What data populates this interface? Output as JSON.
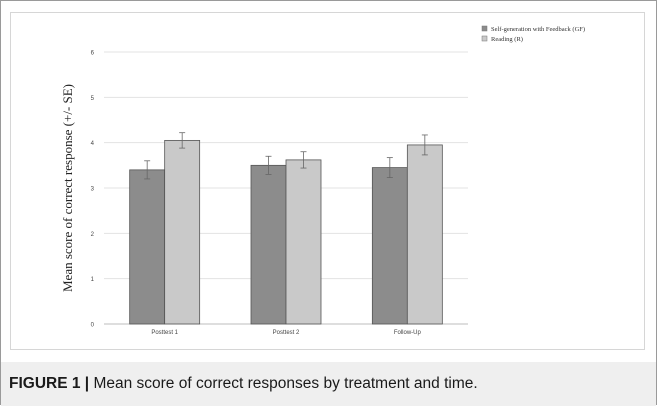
{
  "chart_data": {
    "type": "bar",
    "categories": [
      "Posttest 1",
      "Posttest 2",
      "Follow-Up"
    ],
    "series": [
      {
        "name": "Self-generation with Feedback (GF)",
        "values": [
          3.4,
          3.5,
          3.45
        ],
        "errors": [
          0.2,
          0.2,
          0.22
        ],
        "color": "#8c8c8c"
      },
      {
        "name": "Reading (R)",
        "values": [
          4.05,
          3.62,
          3.95
        ],
        "errors": [
          0.17,
          0.18,
          0.22
        ],
        "color": "#c9c9c9"
      }
    ],
    "title": "",
    "xlabel": "",
    "ylabel": "Mean score of correct response (+/- SE)",
    "ylim": [
      0,
      6
    ],
    "yticks": [
      "0",
      "1",
      "2",
      "3",
      "4",
      "5",
      "6"
    ],
    "grid": true,
    "legend": "top-right"
  },
  "caption": {
    "label": "FIGURE 1 |",
    "text": " Mean score of correct responses by treatment and time."
  }
}
